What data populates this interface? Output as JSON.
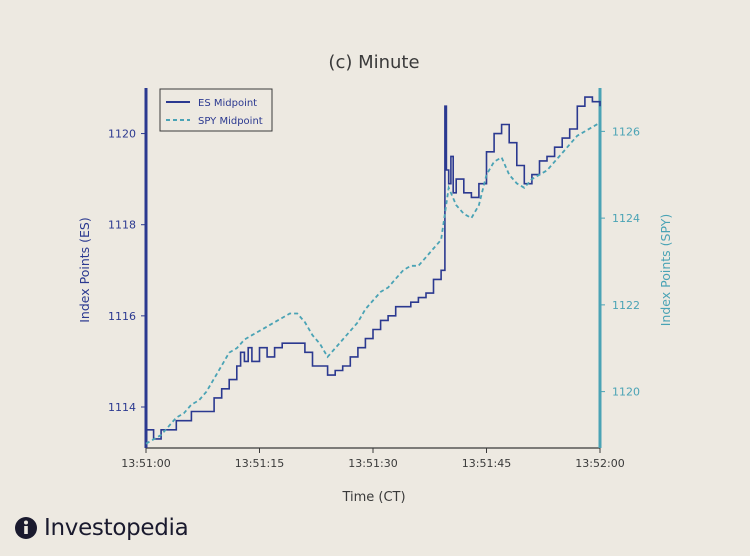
{
  "brand": {
    "name": "Investopedia"
  },
  "chart_data": {
    "type": "line",
    "title": "(c) Minute",
    "xlabel": "Time (CT)",
    "ylabel_left": "Index Points (ES)",
    "ylabel_right": "Index Points (SPY)",
    "x_ticks": [
      {
        "t": 0,
        "label": "13:51:00"
      },
      {
        "t": 15,
        "label": "13:51:15"
      },
      {
        "t": 30,
        "label": "13:51:30"
      },
      {
        "t": 45,
        "label": "13:51:45"
      },
      {
        "t": 60,
        "label": "13:52:00"
      }
    ],
    "xlim": [
      0,
      60
    ],
    "ylim_left": [
      1113.1,
      1121.0
    ],
    "yticks_left": [
      1114,
      1116,
      1118,
      1120
    ],
    "ylim_right": [
      1118.7,
      1127.0
    ],
    "yticks_right": [
      1120,
      1122,
      1124,
      1126
    ],
    "grid": false,
    "legend_position": "top-left",
    "series": [
      {
        "name": "ES Midpoint",
        "axis": "left",
        "color": "#2b3990",
        "style": "solid-step",
        "points": [
          [
            0,
            1113.5
          ],
          [
            1,
            1113.3
          ],
          [
            2,
            1113.5
          ],
          [
            4,
            1113.7
          ],
          [
            6,
            1113.9
          ],
          [
            8,
            1113.9
          ],
          [
            9,
            1114.2
          ],
          [
            10,
            1114.4
          ],
          [
            11,
            1114.6
          ],
          [
            12,
            1114.9
          ],
          [
            12.5,
            1115.2
          ],
          [
            13,
            1115.0
          ],
          [
            13.5,
            1115.3
          ],
          [
            14,
            1115.0
          ],
          [
            15,
            1115.3
          ],
          [
            16,
            1115.1
          ],
          [
            17,
            1115.3
          ],
          [
            18,
            1115.4
          ],
          [
            20,
            1115.4
          ],
          [
            21,
            1115.2
          ],
          [
            22,
            1114.9
          ],
          [
            23,
            1114.9
          ],
          [
            24,
            1114.7
          ],
          [
            25,
            1114.8
          ],
          [
            26,
            1114.9
          ],
          [
            27,
            1115.1
          ],
          [
            28,
            1115.3
          ],
          [
            29,
            1115.5
          ],
          [
            30,
            1115.7
          ],
          [
            31,
            1115.9
          ],
          [
            32,
            1116.0
          ],
          [
            33,
            1116.2
          ],
          [
            34,
            1116.2
          ],
          [
            35,
            1116.3
          ],
          [
            36,
            1116.4
          ],
          [
            37,
            1116.5
          ],
          [
            38,
            1116.8
          ],
          [
            39,
            1117.0
          ],
          [
            39.5,
            1120.6
          ],
          [
            39.7,
            1119.2
          ],
          [
            40,
            1118.9
          ],
          [
            40.3,
            1119.5
          ],
          [
            40.6,
            1118.7
          ],
          [
            41,
            1119.0
          ],
          [
            42,
            1118.7
          ],
          [
            43,
            1118.6
          ],
          [
            44,
            1118.9
          ],
          [
            45,
            1119.6
          ],
          [
            46,
            1120.0
          ],
          [
            47,
            1120.2
          ],
          [
            48,
            1119.8
          ],
          [
            49,
            1119.3
          ],
          [
            50,
            1118.9
          ],
          [
            51,
            1119.1
          ],
          [
            52,
            1119.4
          ],
          [
            53,
            1119.5
          ],
          [
            54,
            1119.7
          ],
          [
            55,
            1119.9
          ],
          [
            56,
            1120.1
          ],
          [
            57,
            1120.6
          ],
          [
            58,
            1120.8
          ],
          [
            59,
            1120.7
          ],
          [
            60,
            1120.6
          ]
        ]
      },
      {
        "name": "SPY Midpoint",
        "axis": "right",
        "color": "#4aa3b5",
        "style": "dashed",
        "points": [
          [
            0,
            1118.8
          ],
          [
            1,
            1118.9
          ],
          [
            2,
            1119.0
          ],
          [
            3,
            1119.2
          ],
          [
            4,
            1119.4
          ],
          [
            5,
            1119.5
          ],
          [
            6,
            1119.7
          ],
          [
            7,
            1119.8
          ],
          [
            8,
            1120.0
          ],
          [
            9,
            1120.3
          ],
          [
            10,
            1120.6
          ],
          [
            11,
            1120.9
          ],
          [
            12,
            1121.0
          ],
          [
            13,
            1121.2
          ],
          [
            14,
            1121.3
          ],
          [
            15,
            1121.4
          ],
          [
            16,
            1121.5
          ],
          [
            17,
            1121.6
          ],
          [
            18,
            1121.7
          ],
          [
            19,
            1121.8
          ],
          [
            20,
            1121.8
          ],
          [
            21,
            1121.6
          ],
          [
            22,
            1121.3
          ],
          [
            23,
            1121.1
          ],
          [
            24,
            1120.8
          ],
          [
            25,
            1121.0
          ],
          [
            26,
            1121.2
          ],
          [
            27,
            1121.4
          ],
          [
            28,
            1121.6
          ],
          [
            29,
            1121.9
          ],
          [
            30,
            1122.1
          ],
          [
            31,
            1122.3
          ],
          [
            32,
            1122.4
          ],
          [
            33,
            1122.6
          ],
          [
            34,
            1122.8
          ],
          [
            35,
            1122.9
          ],
          [
            36,
            1122.9
          ],
          [
            37,
            1123.1
          ],
          [
            38,
            1123.3
          ],
          [
            39,
            1123.5
          ],
          [
            39.5,
            1124.1
          ],
          [
            40,
            1124.7
          ],
          [
            41,
            1124.3
          ],
          [
            42,
            1124.1
          ],
          [
            43,
            1124.0
          ],
          [
            44,
            1124.3
          ],
          [
            45,
            1125.0
          ],
          [
            46,
            1125.3
          ],
          [
            47,
            1125.4
          ],
          [
            48,
            1125.0
          ],
          [
            49,
            1124.8
          ],
          [
            50,
            1124.7
          ],
          [
            51,
            1124.9
          ],
          [
            52,
            1125.0
          ],
          [
            53,
            1125.1
          ],
          [
            54,
            1125.3
          ],
          [
            55,
            1125.5
          ],
          [
            56,
            1125.7
          ],
          [
            57,
            1125.9
          ],
          [
            58,
            1126.0
          ],
          [
            59,
            1126.1
          ],
          [
            60,
            1126.2
          ]
        ]
      }
    ]
  }
}
